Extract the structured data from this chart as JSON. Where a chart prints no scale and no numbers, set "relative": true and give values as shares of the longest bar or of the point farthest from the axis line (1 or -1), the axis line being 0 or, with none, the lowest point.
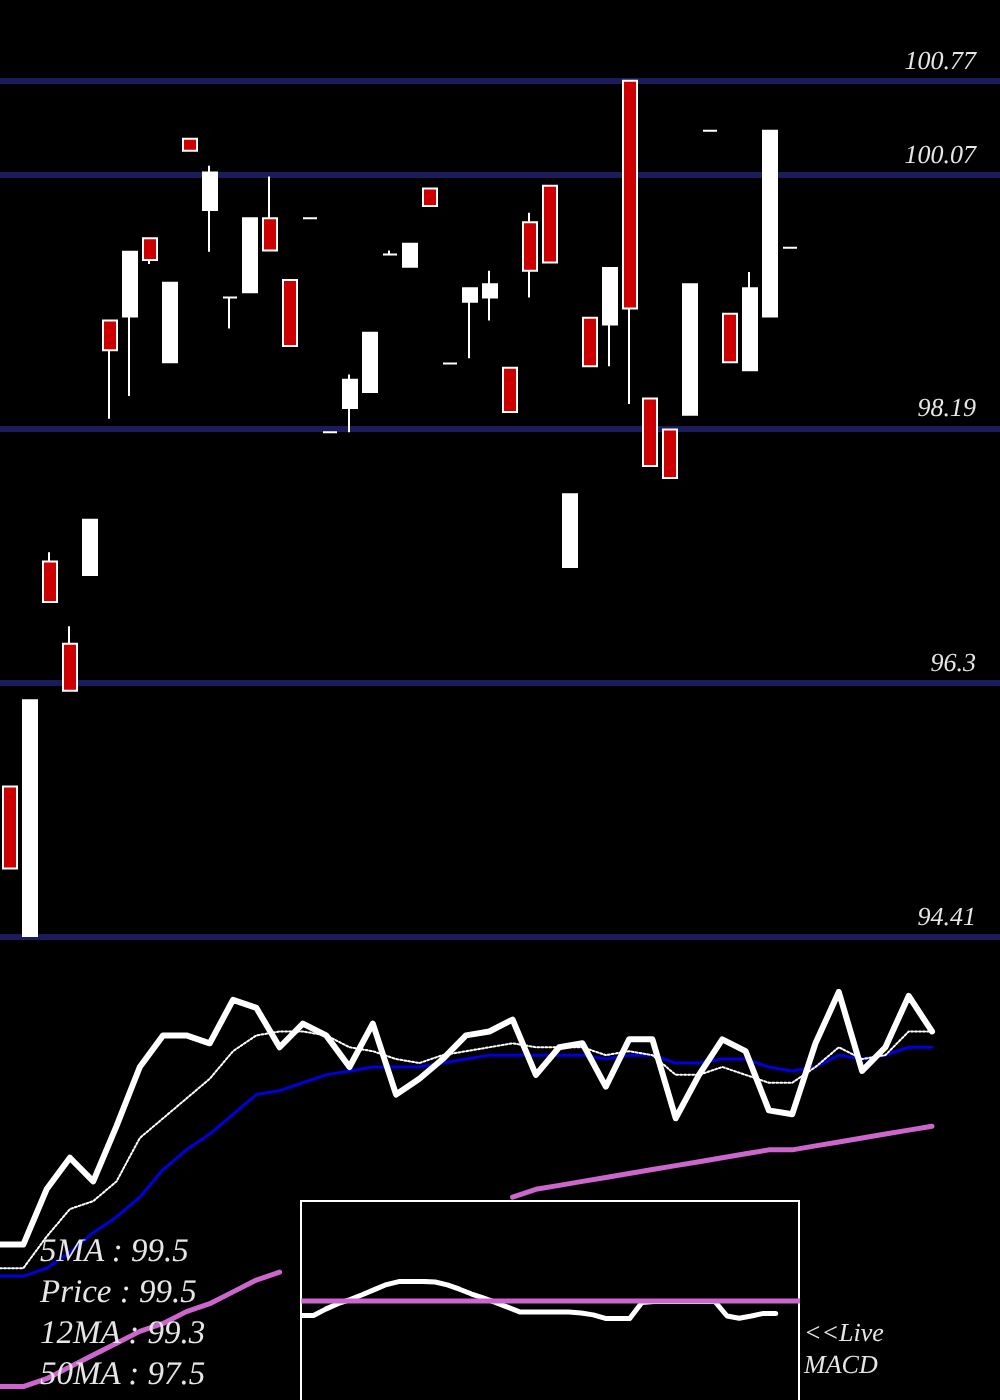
{
  "chart_data": [
    {
      "type": "candlestick",
      "categories": [
        null,
        null,
        null,
        null,
        null,
        null,
        null,
        null,
        null,
        null,
        null,
        null,
        null,
        null,
        null,
        null,
        null,
        null,
        null,
        null,
        null,
        null,
        null,
        null,
        null,
        null,
        null,
        null,
        null,
        null,
        null,
        null,
        null,
        null,
        null,
        null,
        null,
        null,
        null,
        null
      ],
      "ohlc": [
        [
          95.53,
          95.53,
          94.92,
          94.92
        ],
        [
          94.42,
          96.17,
          94.42,
          96.17
        ],
        [
          97.2,
          97.27,
          96.9,
          96.9
        ],
        [
          96.59,
          96.72,
          96.24,
          96.24
        ],
        [
          97.1,
          97.51,
          97.1,
          97.51
        ],
        [
          98.99,
          98.99,
          98.26,
          98.77
        ],
        [
          99.02,
          99.5,
          98.43,
          99.5
        ],
        [
          99.6,
          99.6,
          99.41,
          99.44
        ],
        [
          98.68,
          99.27,
          98.68,
          99.27
        ],
        [
          100.34,
          100.34,
          100.25,
          100.25
        ],
        [
          99.81,
          100.14,
          99.5,
          100.09
        ],
        [
          99.16,
          99.16,
          98.93,
          99.16
        ],
        [
          99.2,
          99.75,
          99.2,
          99.75
        ],
        [
          99.75,
          100.06,
          99.51,
          99.51
        ],
        [
          99.29,
          99.29,
          98.8,
          98.8
        ],
        [
          99.75,
          99.75,
          99.75,
          99.75
        ],
        [
          98.16,
          98.16,
          98.16,
          98.16
        ],
        [
          98.34,
          98.59,
          98.16,
          98.55
        ],
        [
          98.46,
          98.9,
          98.46,
          98.9
        ],
        [
          99.48,
          99.51,
          99.48,
          99.48
        ],
        [
          99.39,
          99.56,
          99.39,
          99.56
        ],
        [
          99.97,
          99.97,
          99.84,
          99.84
        ],
        [
          98.67,
          98.67,
          98.67,
          98.67
        ],
        [
          99.13,
          99.23,
          98.71,
          99.23
        ],
        [
          99.16,
          99.36,
          98.99,
          99.26
        ],
        [
          98.64,
          98.64,
          98.31,
          98.31
        ],
        [
          99.72,
          99.79,
          99.16,
          99.36
        ],
        [
          99.99,
          99.99,
          99.42,
          99.42
        ],
        [
          97.16,
          97.7,
          97.16,
          97.7
        ],
        [
          99.01,
          99.01,
          98.65,
          98.65
        ],
        [
          98.96,
          99.38,
          98.65,
          99.38
        ],
        [
          100.77,
          100.77,
          98.37,
          99.08
        ],
        [
          98.41,
          98.41,
          97.91,
          97.91
        ],
        [
          98.18,
          98.18,
          97.82,
          97.82
        ],
        [
          98.29,
          99.26,
          98.29,
          99.26
        ],
        [
          100.4,
          100.4,
          100.4,
          100.4
        ],
        [
          99.04,
          99.04,
          98.68,
          98.68
        ],
        [
          98.62,
          99.35,
          98.62,
          99.23
        ],
        [
          99.02,
          100.4,
          99.02,
          100.4
        ],
        [
          99.53,
          99.53,
          99.53,
          99.53
        ]
      ],
      "colors": [
        "#cc0000",
        "#ffffff",
        "#cc0000",
        "#cc0000",
        "#ffffff",
        "#cc0000",
        "#ffffff",
        "#cc0000",
        "#ffffff",
        "#cc0000",
        "#ffffff",
        "#ffffff",
        "#ffffff",
        "#cc0000",
        "#cc0000",
        "#ffffff",
        "#ffffff",
        "#ffffff",
        "#ffffff",
        "#ffffff",
        "#ffffff",
        "#cc0000",
        "#ffffff",
        "#ffffff",
        "#ffffff",
        "#cc0000",
        "#cc0000",
        "#cc0000",
        "#ffffff",
        "#cc0000",
        "#ffffff",
        "#cc0000",
        "#cc0000",
        "#cc0000",
        "#ffffff",
        "#ffffff",
        "#cc0000",
        "#ffffff",
        "#ffffff",
        "#ffffff"
      ],
      "ylim": [
        94.39,
        101.37
      ],
      "yticks": [
        94.41,
        96.3,
        98.19,
        100.07,
        100.77
      ],
      "grid": "y",
      "tick_labels": "y"
    },
    {
      "type": "line",
      "relative": true,
      "categories": [
        null,
        null,
        null,
        null,
        null,
        null,
        null,
        null,
        null,
        null,
        null,
        null,
        null,
        null,
        null,
        null,
        null,
        null,
        null,
        null,
        null,
        null,
        null,
        null,
        null,
        null,
        null,
        null,
        null,
        null,
        null,
        null,
        null,
        null,
        null,
        null,
        null,
        null,
        null,
        null,
        null
      ],
      "series": [
        {
          "color": "#cc66cc",
          "values": [
            0,
            0,
            0.02,
            0.05,
            0.08,
            0.11,
            0.14,
            0.16,
            0.19,
            0.21,
            0.24,
            0.27,
            0.29,
            null,
            null,
            null,
            null,
            null,
            null,
            null,
            null,
            null,
            0.48,
            0.5,
            0.51,
            0.52,
            0.53,
            0.54,
            0.55,
            0.56,
            0.57,
            0.58,
            0.59,
            0.6,
            0.6,
            0.61,
            0.62,
            0.63,
            0.64,
            0.65,
            0.66
          ]
        },
        {
          "color": "#0000dd",
          "values": [
            0.28,
            0.28,
            0.3,
            0.34,
            0.39,
            0.43,
            0.48,
            0.55,
            0.6,
            0.64,
            0.69,
            0.74,
            0.75,
            0.77,
            0.79,
            0.8,
            0.81,
            0.81,
            0.81,
            0.82,
            0.83,
            0.84,
            0.84,
            0.84,
            0.84,
            0.84,
            0.83,
            0.84,
            0.84,
            0.82,
            0.82,
            0.83,
            0.83,
            0.81,
            0.8,
            0.81,
            0.84,
            0.83,
            0.84,
            0.86,
            0.86
          ]
        },
        {
          "color": "#ffffff",
          "line_style": "dotted",
          "values": [
            0.3,
            0.3,
            0.38,
            0.45,
            0.47,
            0.52,
            0.63,
            0.68,
            0.73,
            0.78,
            0.85,
            0.89,
            0.9,
            0.9,
            0.89,
            0.86,
            0.85,
            0.83,
            0.82,
            0.84,
            0.85,
            0.86,
            0.87,
            0.86,
            0.86,
            0.86,
            0.84,
            0.85,
            0.84,
            0.79,
            0.79,
            0.81,
            0.79,
            0.77,
            0.77,
            0.81,
            0.86,
            0.83,
            0.84,
            0.9,
            0.9
          ]
        },
        {
          "color": "#ffffff",
          "values": [
            0.36,
            0.36,
            0.5,
            0.58,
            0.52,
            0.66,
            0.81,
            0.89,
            0.89,
            0.87,
            0.98,
            0.96,
            0.86,
            0.92,
            0.89,
            0.81,
            0.92,
            0.74,
            0.78,
            0.83,
            0.89,
            0.9,
            0.93,
            0.79,
            0.86,
            0.87,
            0.76,
            0.88,
            0.88,
            0.68,
            0.79,
            0.88,
            0.85,
            0.7,
            0.69,
            0.87,
            1,
            0.8,
            0.86,
            0.99,
            0.9
          ]
        }
      ],
      "annotations": [
        "5MA : 99.5",
        "Price : 99.5",
        "12MA : 99.3",
        "50MA : 97.5",
        "<<Live MACD"
      ],
      "marker": "none",
      "tick_labels": false
    },
    {
      "type": "line",
      "relative": true,
      "categories": [
        null,
        null,
        null,
        null,
        null,
        null,
        null,
        null,
        null,
        null,
        null,
        null,
        null,
        null,
        null,
        null,
        null,
        null,
        null,
        null,
        null,
        null,
        null,
        null,
        null,
        null,
        null,
        null,
        null,
        null,
        null,
        null,
        null,
        null,
        null,
        null,
        null,
        null,
        null,
        null
      ],
      "series": [
        {
          "color": "#ffffff",
          "values": [
            -0.83,
            -0.83,
            -0.49,
            -0.2,
            0.02,
            0.28,
            0.56,
            0.83,
            0.99,
            1,
            1,
            0.97,
            0.81,
            0.58,
            0.32,
            0.1,
            -0.14,
            -0.4,
            -0.65,
            -0.65,
            -0.65,
            -0.65,
            -0.65,
            -0.7,
            -0.8,
            -0.99,
            -1,
            -1,
            -0.14,
            -0.08,
            -0.08,
            -0.08,
            -0.08,
            -0.08,
            -0.08,
            -0.86,
            -0.98,
            -0.86,
            -0.72,
            -0.72
          ]
        }
      ],
      "ref_lines": [
        {
          "axis": "y",
          "value": 0,
          "color": "#cc66cc"
        }
      ],
      "marker": "none",
      "tick_labels": false
    }
  ]
}
